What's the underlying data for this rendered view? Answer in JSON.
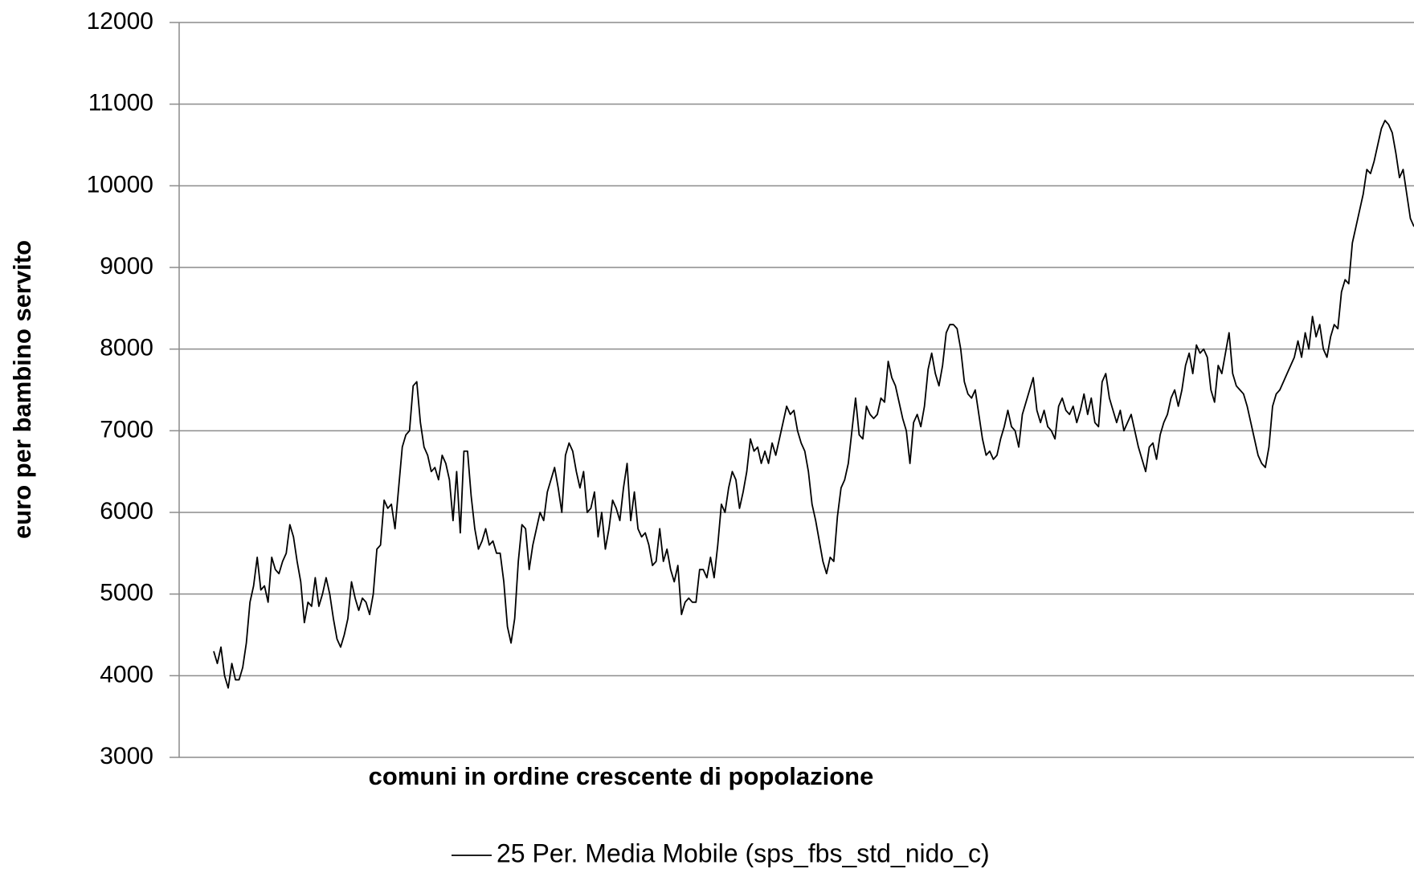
{
  "chart_data": {
    "type": "line",
    "x_label": "comuni in ordine crescente di popolazione",
    "y_label": "euro per bambino servito",
    "ylim": [
      3000,
      12000
    ],
    "yticks": [
      3000,
      4000,
      5000,
      6000,
      7000,
      8000,
      9000,
      10000,
      11000,
      12000
    ],
    "grid": true,
    "legend": "bottom",
    "series": [
      {
        "name": "25 Per. Media Mobile (sps_fbs_std_nido_c)",
        "color": "#000000",
        "values": [
          4300,
          4150,
          4350,
          4000,
          3850,
          4150,
          3950,
          3950,
          4100,
          4400,
          4900,
          5100,
          5450,
          5050,
          5100,
          4900,
          5450,
          5300,
          5250,
          5400,
          5500,
          5850,
          5700,
          5400,
          5150,
          4650,
          4900,
          4850,
          5200,
          4850,
          5000,
          5200,
          5000,
          4700,
          4450,
          4350,
          4500,
          4700,
          5150,
          4950,
          4800,
          4950,
          4900,
          4750,
          5000,
          5550,
          5600,
          6150,
          6050,
          6100,
          5800,
          6300,
          6800,
          6950,
          7000,
          7550,
          7600,
          7100,
          6800,
          6700,
          6500,
          6550,
          6400,
          6700,
          6600,
          6400,
          5900,
          6500,
          5750,
          6750,
          6750,
          6200,
          5800,
          5550,
          5650,
          5800,
          5600,
          5650,
          5500,
          5500,
          5150,
          4600,
          4400,
          4700,
          5400,
          5850,
          5800,
          5300,
          5600,
          5800,
          6000,
          5900,
          6250,
          6400,
          6550,
          6300,
          6000,
          6700,
          6850,
          6750,
          6500,
          6300,
          6500,
          6000,
          6050,
          6250,
          5700,
          6000,
          5550,
          5800,
          6150,
          6050,
          5900,
          6300,
          6600,
          5900,
          6250,
          5800,
          5700,
          5750,
          5600,
          5350,
          5400,
          5800,
          5400,
          5550,
          5300,
          5150,
          5350,
          4750,
          4900,
          4950,
          4900,
          4900,
          5300,
          5300,
          5200,
          5450,
          5200,
          5600,
          6100,
          6000,
          6300,
          6500,
          6400,
          6050,
          6250,
          6500,
          6900,
          6750,
          6800,
          6600,
          6750,
          6600,
          6850,
          6700,
          6900,
          7100,
          7300,
          7200,
          7250,
          7000,
          6850,
          6750,
          6500,
          6100,
          5900,
          5650,
          5400,
          5250,
          5450,
          5400,
          5950,
          6300,
          6400,
          6600,
          7000,
          7400,
          6950,
          6900,
          7300,
          7200,
          7150,
          7200,
          7400,
          7350,
          7850,
          7650,
          7550,
          7350,
          7150,
          7000,
          6600,
          7100,
          7200,
          7050,
          7300,
          7750,
          7950,
          7700,
          7550,
          7800,
          8200,
          8300,
          8300,
          8250,
          8000,
          7600,
          7450,
          7400,
          7500,
          7200,
          6900,
          6700,
          6750,
          6650,
          6700,
          6900,
          7050,
          7250,
          7050,
          7000,
          6800,
          7200,
          7350,
          7500,
          7650,
          7250,
          7100,
          7250,
          7050,
          7000,
          6900,
          7300,
          7400,
          7250,
          7200,
          7300,
          7100,
          7250,
          7450,
          7200,
          7400,
          7100,
          7050,
          7600,
          7700,
          7400,
          7250,
          7100,
          7250,
          7000,
          7100,
          7200,
          7000,
          6800,
          6650,
          6500,
          6800,
          6850,
          6650,
          6950,
          7100,
          7200,
          7400,
          7500,
          7300,
          7500,
          7800,
          7950,
          7700,
          8050,
          7950,
          8000,
          7900,
          7500,
          7350,
          7800,
          7700,
          7950,
          8200,
          7700,
          7550,
          7500,
          7450,
          7300,
          7100,
          6900,
          6700,
          6600,
          6550,
          6800,
          7300,
          7450,
          7500,
          7600,
          7700,
          7800,
          7900,
          8100,
          7900,
          8200,
          8000,
          8400,
          8150,
          8300,
          8000,
          7900,
          8150,
          8300,
          8250,
          8700,
          8850,
          8800,
          9300,
          9500,
          9700,
          9900,
          10200,
          10150,
          10300,
          10500,
          10700,
          10800,
          10750,
          10650,
          10400,
          10100,
          10200,
          9900,
          9600,
          9500
        ]
      }
    ]
  }
}
